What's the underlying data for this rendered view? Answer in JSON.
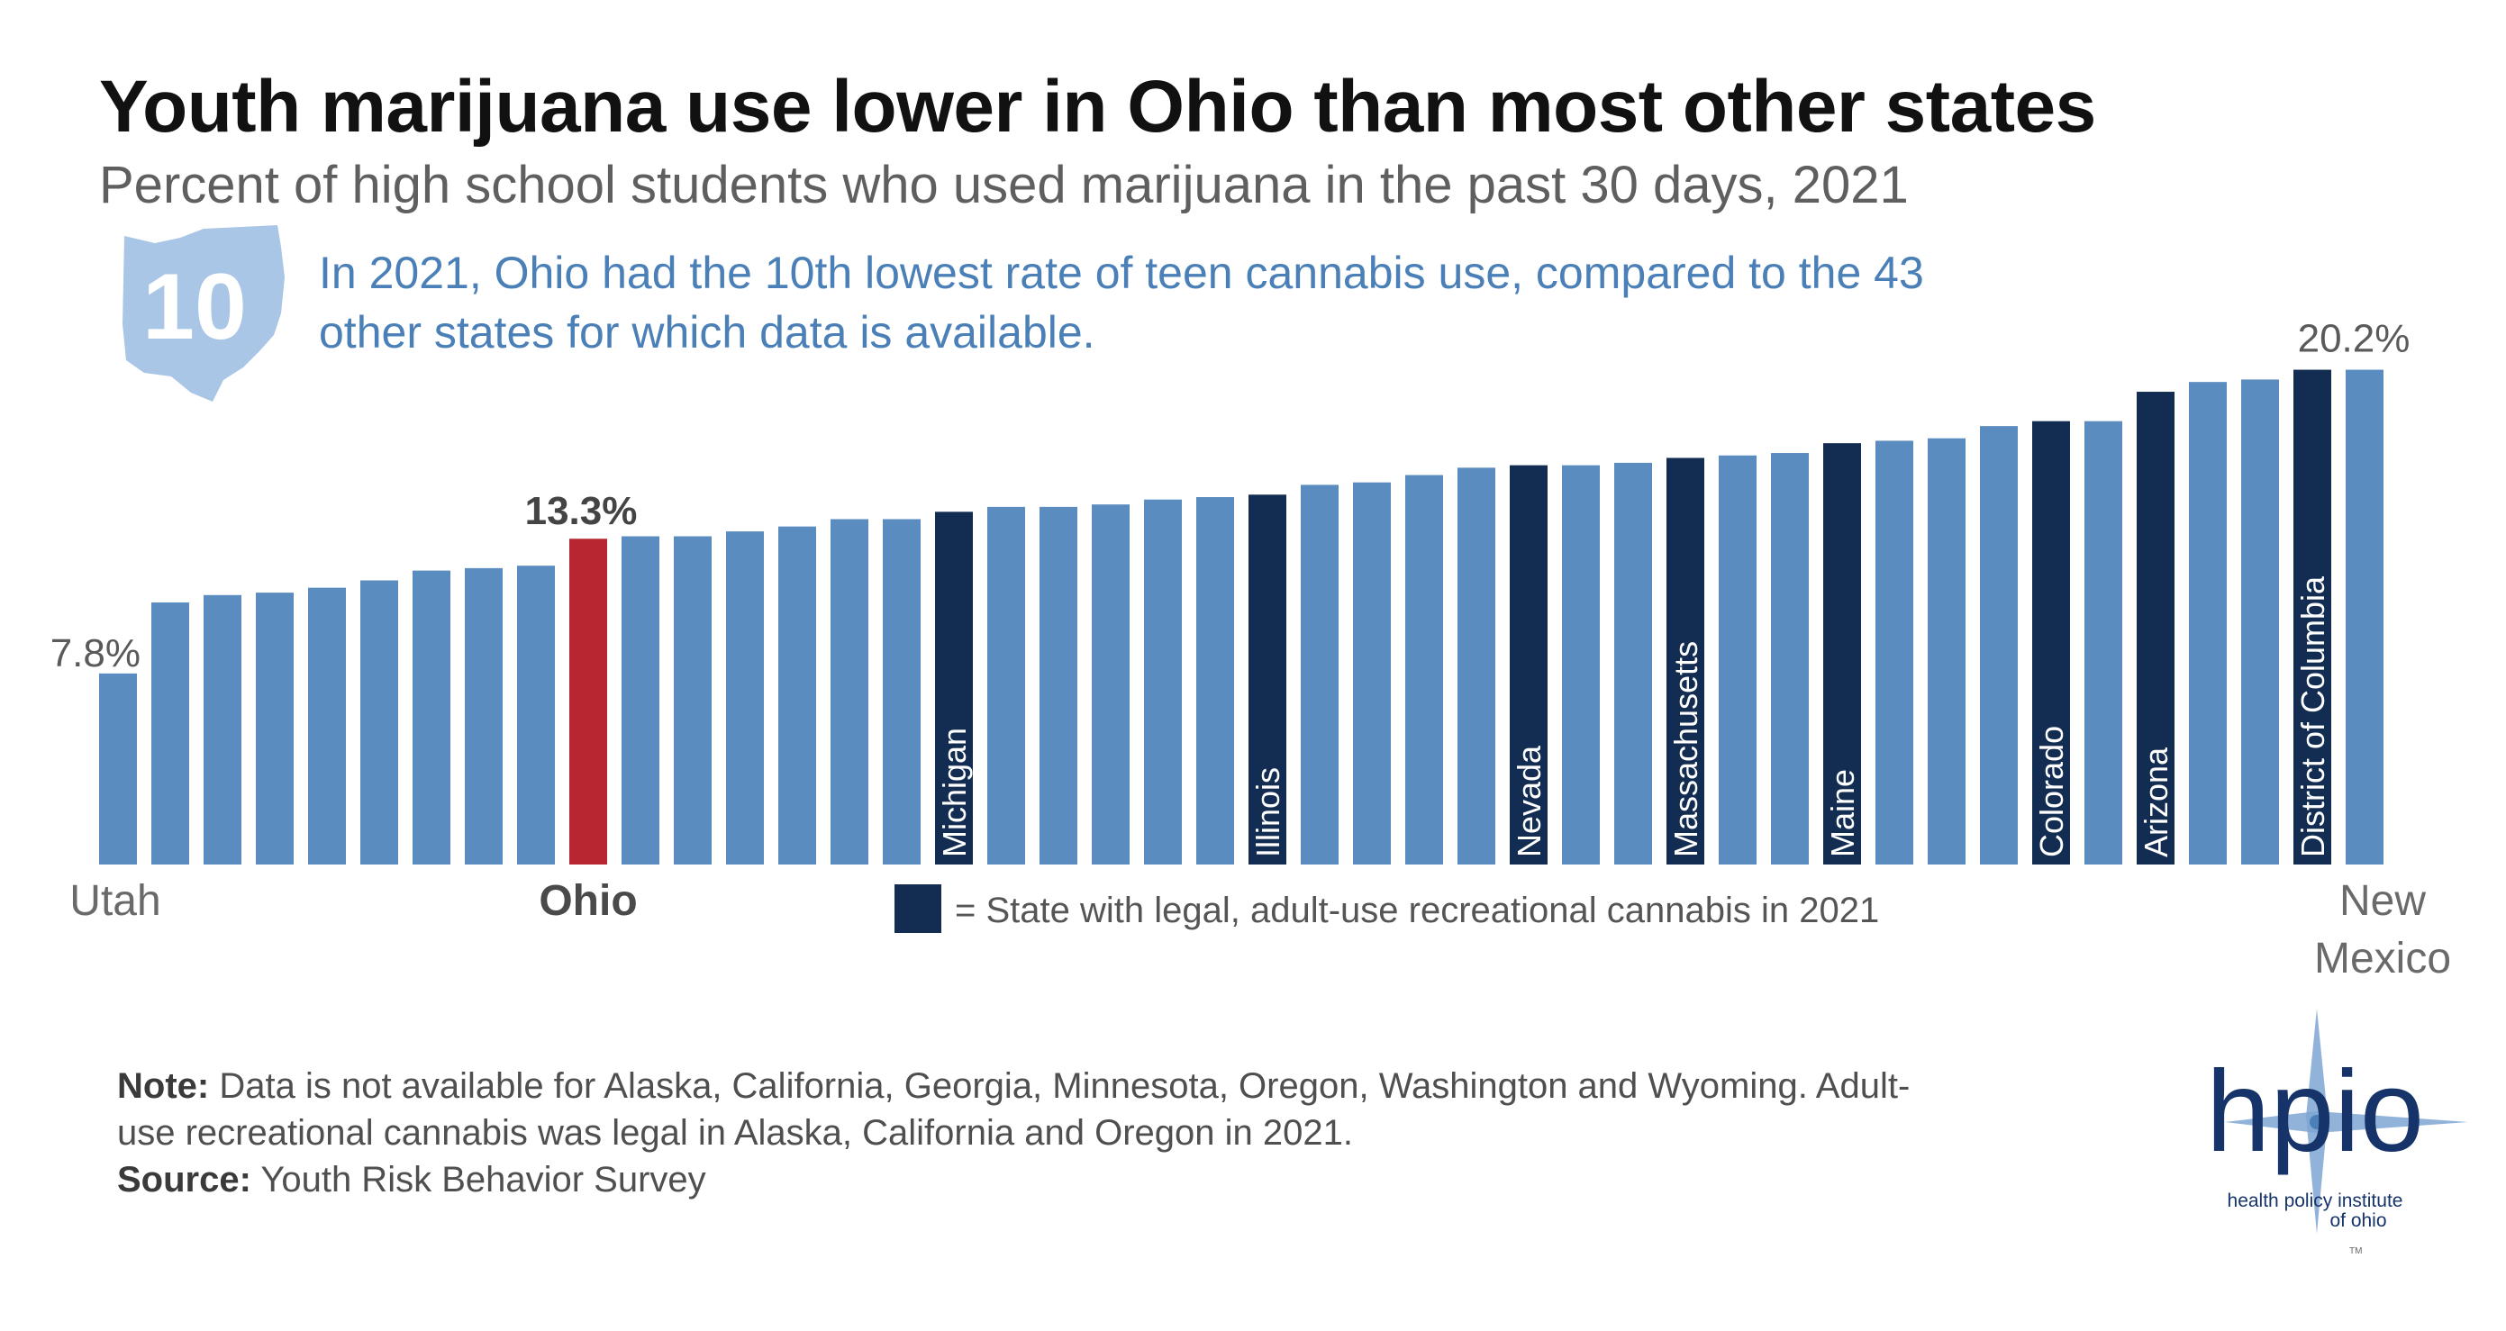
{
  "title": "Youth marijuana use lower in Ohio than most other states",
  "subtitle": "Percent of high school students who used marijuana in the past 30 days, 2021",
  "callout": {
    "rank_number": "10",
    "text": "In 2021, Ohio had the 10th lowest rate of teen cannabis use, compared to the 43 other states for which data is available."
  },
  "colors": {
    "default_bar": "#5b8cbf",
    "legal_bar": "#122c52",
    "ohio_bar": "#b82632",
    "ohio_shape": "#a9c6e6",
    "callout_text": "#4a80b7"
  },
  "legend": {
    "text": "= State with legal, adult-use recreational cannabis in 2021"
  },
  "note": {
    "note_label": "Note:",
    "note_text": "Data is not available for Alaska, California, Georgia, Minnesota, Oregon, Washington and Wyoming. Adult-use recreational cannabis was legal in Alaska, California and Oregon in 2021.",
    "source_label": "Source:",
    "source_text": "Youth Risk Behavior Survey"
  },
  "logo": {
    "wordmark": "hpio",
    "tagline_1": "health policy institute",
    "tagline_2": "of ohio",
    "tm": "TM"
  },
  "chart_data": {
    "type": "bar",
    "title": "Youth marijuana use lower in Ohio than most other states",
    "ylabel": "Percent of high school students who used marijuana in the past 30 days, 2021",
    "ylim": [
      0,
      21
    ],
    "grid": false,
    "legend": "bottom-center",
    "bars": [
      {
        "value": 7.8,
        "label": "Utah",
        "category": "end",
        "value_label": "7.8%"
      },
      {
        "value": 10.7,
        "category": "default"
      },
      {
        "value": 11.0,
        "category": "default"
      },
      {
        "value": 11.1,
        "category": "default"
      },
      {
        "value": 11.3,
        "category": "default"
      },
      {
        "value": 11.6,
        "category": "default"
      },
      {
        "value": 12.0,
        "category": "default"
      },
      {
        "value": 12.1,
        "category": "default"
      },
      {
        "value": 12.2,
        "category": "default"
      },
      {
        "value": 13.3,
        "label": "Ohio",
        "category": "ohio",
        "value_label": "13.3%"
      },
      {
        "value": 13.4,
        "category": "default"
      },
      {
        "value": 13.4,
        "category": "default"
      },
      {
        "value": 13.6,
        "category": "default"
      },
      {
        "value": 13.8,
        "category": "default"
      },
      {
        "value": 14.1,
        "category": "default"
      },
      {
        "value": 14.1,
        "category": "default"
      },
      {
        "value": 14.4,
        "label": "Michigan",
        "category": "legal"
      },
      {
        "value": 14.6,
        "category": "default"
      },
      {
        "value": 14.6,
        "category": "default"
      },
      {
        "value": 14.7,
        "category": "default"
      },
      {
        "value": 14.9,
        "category": "default"
      },
      {
        "value": 15.0,
        "category": "default"
      },
      {
        "value": 15.1,
        "label": "Illinois",
        "category": "legal"
      },
      {
        "value": 15.5,
        "category": "default"
      },
      {
        "value": 15.6,
        "category": "default"
      },
      {
        "value": 15.9,
        "category": "default"
      },
      {
        "value": 16.2,
        "category": "default"
      },
      {
        "value": 16.3,
        "label": "Nevada",
        "category": "legal"
      },
      {
        "value": 16.3,
        "category": "default"
      },
      {
        "value": 16.4,
        "category": "default"
      },
      {
        "value": 16.6,
        "label": "Massachusetts",
        "category": "legal"
      },
      {
        "value": 16.7,
        "category": "default"
      },
      {
        "value": 16.8,
        "category": "default"
      },
      {
        "value": 17.2,
        "label": "Maine",
        "category": "legal"
      },
      {
        "value": 17.3,
        "category": "default"
      },
      {
        "value": 17.4,
        "category": "default"
      },
      {
        "value": 17.9,
        "category": "default"
      },
      {
        "value": 18.1,
        "label": "Colorado",
        "category": "legal"
      },
      {
        "value": 18.1,
        "category": "default"
      },
      {
        "value": 19.3,
        "label": "Arizona",
        "category": "legal"
      },
      {
        "value": 19.7,
        "category": "default"
      },
      {
        "value": 19.8,
        "category": "default"
      },
      {
        "value": 20.2,
        "label": "District of Columbia",
        "category": "legal"
      },
      {
        "value": 20.2,
        "label": "New Mexico",
        "category": "end",
        "value_label": "20.2%"
      }
    ]
  }
}
